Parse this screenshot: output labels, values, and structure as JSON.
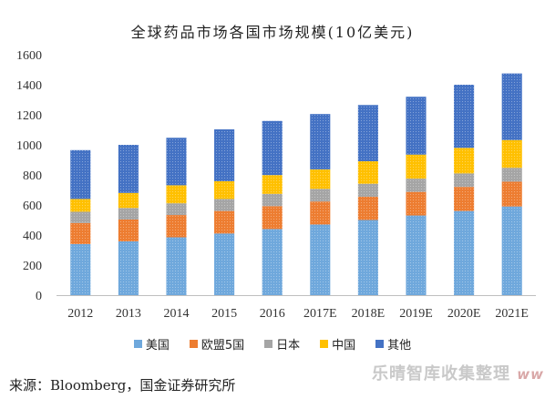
{
  "title": "全球药品市场各国市场规模(10亿美元)",
  "source": "来源：Bloomberg，国金证券研究所",
  "watermark": {
    "text": "乐晴智库收集整理",
    "url": "www"
  },
  "legend_position": "bottom",
  "colors": {
    "美国": "#6fa8dc",
    "欧盟5国": "#ed7d31",
    "日本": "#a5a5a5",
    "中国": "#ffc000",
    "其他": "#4472c4"
  },
  "chart_data": {
    "type": "bar",
    "stacked": true,
    "categories": [
      "2012",
      "2013",
      "2014",
      "2015",
      "2016",
      "2017E",
      "2018E",
      "2019E",
      "2020E",
      "2021E"
    ],
    "series": [
      {
        "name": "美国",
        "values": [
          340,
          358,
          385,
          410,
          440,
          470,
          500,
          530,
          560,
          590
        ]
      },
      {
        "name": "欧盟5国",
        "values": [
          140,
          145,
          148,
          150,
          152,
          153,
          155,
          157,
          160,
          165
        ]
      },
      {
        "name": "日本",
        "values": [
          75,
          77,
          78,
          80,
          82,
          84,
          86,
          88,
          90,
          92
        ]
      },
      {
        "name": "中国",
        "values": [
          85,
          100,
          120,
          118,
          125,
          130,
          150,
          160,
          170,
          185
        ]
      },
      {
        "name": "其他",
        "values": [
          325,
          320,
          316,
          345,
          360,
          368,
          374,
          385,
          420,
          443
        ]
      }
    ],
    "yticks": [
      0,
      200,
      400,
      600,
      800,
      1000,
      1200,
      1400,
      1600
    ],
    "ylim": [
      0,
      1600
    ],
    "grid": false,
    "title": "全球药品市场各国市场规模(10亿美元)",
    "xlabel": "",
    "ylabel": ""
  }
}
